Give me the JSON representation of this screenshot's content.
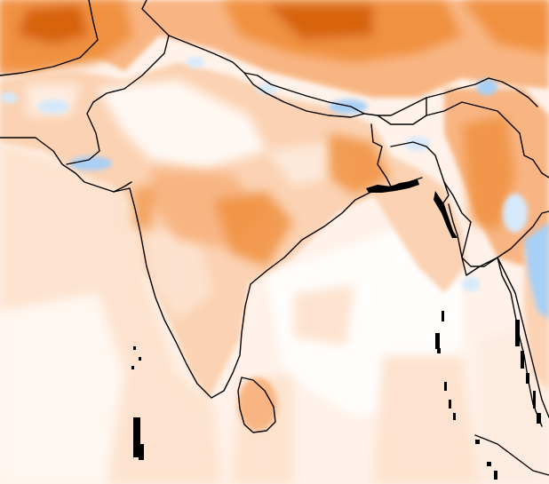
{
  "map": {
    "type": "gridded anomaly field with coastlines and borders",
    "labels": [],
    "colors": {
      "ocean_background": "#fff2ea",
      "land_pale": "#fde6d5",
      "warm_light": "#fbd2b3",
      "warm_medium": "#f8b583",
      "warm_strong": "#f0913f",
      "warm_intense": "#d76410",
      "cool_light": "#d6e9fb",
      "cool_medium": "#a8cff5",
      "boundary_line": "#000000"
    },
    "legend": "none"
  }
}
